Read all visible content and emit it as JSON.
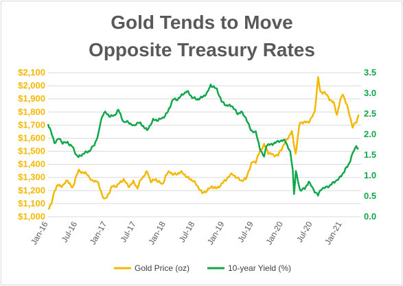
{
  "chart_data": {
    "type": "line",
    "title": [
      "Gold Tends to Move",
      "Opposite Treasury Rates"
    ],
    "colors": {
      "gold": "#f5b800",
      "yield": "#10a64a",
      "grid": "#d9d9d9",
      "title": "#595959"
    },
    "x_ticks": [
      "Jan-16",
      "Jul-16",
      "Jan-17",
      "Jul-17",
      "Jan-18",
      "Jul-18",
      "Jan-19",
      "Jul-19",
      "Jan-20",
      "Jul-20",
      "Jan-21"
    ],
    "x_range": [
      "2016-01-01",
      "2021-04-30"
    ],
    "y_left": {
      "range": [
        1000,
        2100
      ],
      "ticks": [
        "$1,000",
        "$1,100",
        "$1,200",
        "$1,300",
        "$1,400",
        "$1,500",
        "$1,600",
        "$1,700",
        "$1,800",
        "$1,900",
        "$2,000",
        "$2,100"
      ]
    },
    "y_right": {
      "range": [
        0,
        3.5
      ],
      "ticks": [
        "0.0",
        "0.5",
        "1.0",
        "1.5",
        "2.0",
        "2.5",
        "3.0",
        "3.5"
      ]
    },
    "grid": true,
    "legend_position": "bottom",
    "series": [
      {
        "name": "Gold Price (oz)",
        "axis": "left",
        "x": [
          "2016-01-01",
          "2016-01-20",
          "2016-02-10",
          "2016-03-01",
          "2016-04-01",
          "2016-05-01",
          "2016-06-01",
          "2016-06-25",
          "2016-07-10",
          "2016-08-01",
          "2016-09-01",
          "2016-10-01",
          "2016-11-01",
          "2016-11-20",
          "2016-12-15",
          "2017-01-01",
          "2017-02-01",
          "2017-03-01",
          "2017-04-15",
          "2017-05-15",
          "2017-06-15",
          "2017-07-10",
          "2017-08-01",
          "2017-09-08",
          "2017-10-01",
          "2017-11-01",
          "2017-12-12",
          "2018-01-01",
          "2018-01-25",
          "2018-02-15",
          "2018-03-15",
          "2018-04-15",
          "2018-05-15",
          "2018-06-15",
          "2018-07-15",
          "2018-08-16",
          "2018-09-15",
          "2018-10-15",
          "2018-11-15",
          "2018-12-15",
          "2019-01-15",
          "2019-02-20",
          "2019-03-15",
          "2019-04-20",
          "2019-05-15",
          "2019-06-01",
          "2019-06-25",
          "2019-07-15",
          "2019-08-10",
          "2019-09-05",
          "2019-10-01",
          "2019-11-01",
          "2019-12-01",
          "2020-01-10",
          "2020-02-24",
          "2020-03-19",
          "2020-04-14",
          "2020-05-15",
          "2020-06-15",
          "2020-07-15",
          "2020-08-06",
          "2020-08-20",
          "2020-09-15",
          "2020-10-15",
          "2020-11-10",
          "2020-12-01",
          "2020-12-20",
          "2021-01-06",
          "2021-02-01",
          "2021-03-08",
          "2021-03-31",
          "2021-04-15"
        ],
        "values": [
          1060,
          1090,
          1200,
          1240,
          1235,
          1280,
          1215,
          1315,
          1350,
          1340,
          1325,
          1270,
          1275,
          1210,
          1130,
          1150,
          1230,
          1235,
          1285,
          1230,
          1265,
          1220,
          1285,
          1345,
          1270,
          1285,
          1245,
          1310,
          1350,
          1320,
          1330,
          1340,
          1300,
          1280,
          1240,
          1180,
          1200,
          1230,
          1215,
          1250,
          1290,
          1330,
          1300,
          1275,
          1290,
          1350,
          1420,
          1420,
          1500,
          1550,
          1490,
          1470,
          1470,
          1560,
          1650,
          1480,
          1720,
          1720,
          1730,
          1800,
          2060,
          1950,
          1950,
          1900,
          1870,
          1780,
          1880,
          1940,
          1850,
          1690,
          1720,
          1780
        ]
      },
      {
        "name": "10-year Yield (%)",
        "axis": "right",
        "x": [
          "2016-01-01",
          "2016-01-25",
          "2016-02-10",
          "2016-03-10",
          "2016-04-01",
          "2016-05-01",
          "2016-06-01",
          "2016-06-25",
          "2016-07-08",
          "2016-08-15",
          "2016-09-15",
          "2016-10-15",
          "2016-11-09",
          "2016-11-25",
          "2016-12-15",
          "2017-01-15",
          "2017-02-15",
          "2017-03-13",
          "2017-04-15",
          "2017-05-15",
          "2017-06-15",
          "2017-07-15",
          "2017-08-15",
          "2017-09-08",
          "2017-10-15",
          "2017-11-15",
          "2017-12-15",
          "2018-01-15",
          "2018-02-15",
          "2018-03-15",
          "2018-04-25",
          "2018-05-15",
          "2018-06-15",
          "2018-07-15",
          "2018-08-15",
          "2018-09-15",
          "2018-10-08",
          "2018-11-15",
          "2018-12-15",
          "2019-01-15",
          "2019-02-15",
          "2019-03-25",
          "2019-04-15",
          "2019-05-15",
          "2019-06-15",
          "2019-07-15",
          "2019-08-15",
          "2019-09-05",
          "2019-09-20",
          "2019-10-15",
          "2019-11-15",
          "2019-12-15",
          "2020-01-15",
          "2020-02-15",
          "2020-03-01",
          "2020-03-09",
          "2020-03-20",
          "2020-04-15",
          "2020-05-15",
          "2020-06-08",
          "2020-07-15",
          "2020-08-05",
          "2020-08-25",
          "2020-09-15",
          "2020-10-15",
          "2020-11-15",
          "2020-12-15",
          "2021-01-15",
          "2021-02-15",
          "2021-03-15",
          "2021-03-31",
          "2021-04-15"
        ],
        "values": [
          2.25,
          2.0,
          1.8,
          1.9,
          1.8,
          1.8,
          1.7,
          1.5,
          1.45,
          1.55,
          1.6,
          1.75,
          2.0,
          2.35,
          2.55,
          2.45,
          2.45,
          2.6,
          2.3,
          2.3,
          2.2,
          2.3,
          2.2,
          2.1,
          2.35,
          2.35,
          2.4,
          2.55,
          2.85,
          2.85,
          3.0,
          3.05,
          2.9,
          2.85,
          2.9,
          3.0,
          3.2,
          3.1,
          2.8,
          2.7,
          2.7,
          2.5,
          2.55,
          2.4,
          2.1,
          2.05,
          1.6,
          1.45,
          1.75,
          1.75,
          1.8,
          1.85,
          1.85,
          1.55,
          1.15,
          0.55,
          1.1,
          0.65,
          0.68,
          0.85,
          0.62,
          0.52,
          0.68,
          0.7,
          0.75,
          0.85,
          0.93,
          1.1,
          1.3,
          1.6,
          1.72,
          1.65
        ]
      }
    ]
  }
}
